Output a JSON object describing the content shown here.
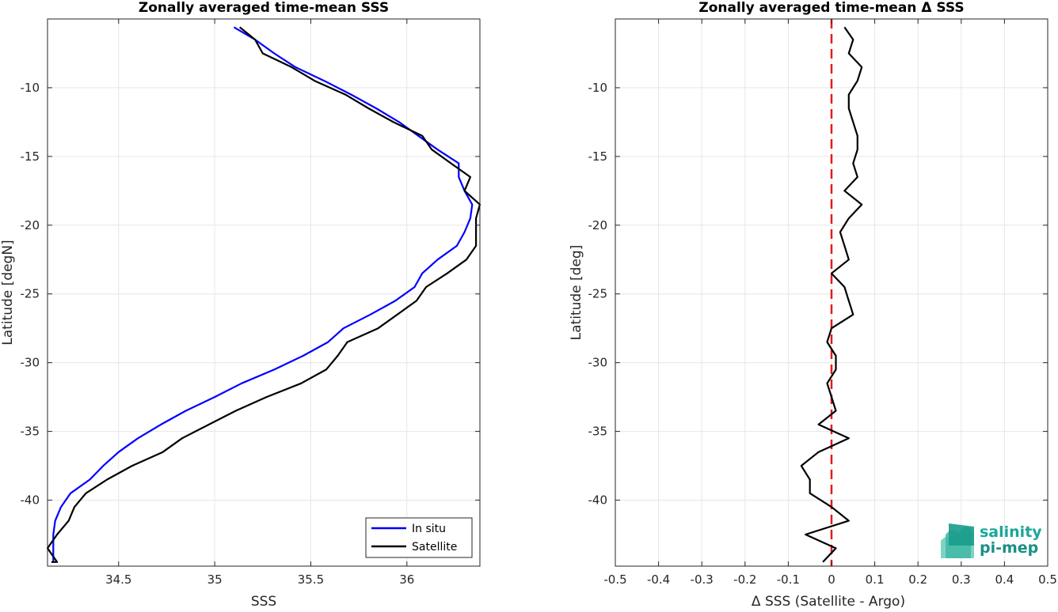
{
  "chart_data": [
    {
      "type": "line",
      "title": "Zonally averaged time-mean SSS",
      "xlabel": "SSS",
      "ylabel": "Latitude [degN]",
      "xlim": [
        34.13,
        36.38
      ],
      "ylim": [
        -44.8,
        -5
      ],
      "xticks": [
        34.5,
        35,
        35.5,
        36
      ],
      "xtick_labels": [
        "34.5",
        "35",
        "35.5",
        "36"
      ],
      "yticks": [
        -40,
        -35,
        -30,
        -25,
        -20,
        -15,
        -10
      ],
      "ytick_labels": [
        "-40",
        "-35",
        "-30",
        "-25",
        "-20",
        "-15",
        "-10"
      ],
      "grid": true,
      "legend_position": "bottom-right",
      "series": [
        {
          "name": "In situ",
          "color": "#0000ff",
          "x": [
            35.1,
            35.21,
            35.31,
            35.42,
            35.57,
            35.71,
            35.84,
            35.96,
            36.06,
            36.16,
            36.27,
            36.27,
            36.3,
            36.34,
            36.33,
            36.3,
            36.26,
            36.16,
            36.08,
            36.04,
            35.94,
            35.81,
            35.67,
            35.59,
            35.46,
            35.31,
            35.14,
            35.0,
            34.85,
            34.72,
            34.6,
            34.5,
            34.42,
            34.35,
            34.25,
            34.2,
            34.17,
            34.16,
            34.16,
            34.16
          ],
          "y": [
            -5.6,
            -6.5,
            -7.5,
            -8.5,
            -9.5,
            -10.5,
            -11.5,
            -12.5,
            -13.5,
            -14.5,
            -15.5,
            -16.5,
            -17.5,
            -18.5,
            -19.5,
            -20.5,
            -21.5,
            -22.5,
            -23.5,
            -24.5,
            -25.5,
            -26.5,
            -27.5,
            -28.5,
            -29.5,
            -30.5,
            -31.5,
            -32.5,
            -33.5,
            -34.5,
            -35.5,
            -36.5,
            -37.5,
            -38.5,
            -39.5,
            -40.5,
            -41.5,
            -42.5,
            -43.5,
            -44.5
          ]
        },
        {
          "name": "Satellite",
          "color": "#000000",
          "x": [
            35.13,
            35.21,
            35.25,
            35.4,
            35.52,
            35.68,
            35.8,
            35.93,
            36.08,
            36.13,
            36.23,
            36.33,
            36.3,
            36.38,
            36.36,
            36.36,
            36.31,
            36.21,
            36.1,
            36.05,
            35.95,
            35.85,
            35.69,
            35.64,
            35.58,
            35.45,
            35.27,
            35.11,
            34.97,
            34.83,
            34.73,
            34.57,
            34.44,
            34.33,
            34.27,
            34.24,
            34.18,
            34.13,
            34.18,
            34.15
          ],
          "y": [
            -5.6,
            -6.5,
            -7.5,
            -8.5,
            -9.5,
            -10.5,
            -11.5,
            -12.5,
            -13.5,
            -14.5,
            -15.5,
            -16.5,
            -17.5,
            -18.5,
            -19.5,
            -21.5,
            -22.5,
            -23.5,
            -24.5,
            -25.5,
            -26.5,
            -27.5,
            -28.5,
            -29.5,
            -30.5,
            -31.5,
            -32.5,
            -33.5,
            -34.5,
            -35.5,
            -36.5,
            -37.5,
            -38.5,
            -39.5,
            -40.5,
            -41.5,
            -42.5,
            -43.5,
            -44.5,
            -44.5
          ]
        }
      ]
    },
    {
      "type": "line",
      "title": "Zonally averaged time-mean Δ SSS",
      "xlabel": "Δ SSS (Satellite - Argo)",
      "ylabel": "Latitude [deg]",
      "xlim": [
        -0.5,
        0.5
      ],
      "ylim": [
        -44.8,
        -5
      ],
      "xticks": [
        -0.5,
        -0.4,
        -0.3,
        -0.2,
        -0.1,
        0,
        0.1,
        0.2,
        0.3,
        0.4,
        0.5
      ],
      "xtick_labels": [
        "-0.5",
        "-0.4",
        "-0.3",
        "-0.2",
        "-0.1",
        "0",
        "0.1",
        "0.2",
        "0.3",
        "0.4",
        "0.5"
      ],
      "yticks": [
        -40,
        -35,
        -30,
        -25,
        -20,
        -15,
        -10
      ],
      "ytick_labels": [
        "-40",
        "-35",
        "-30",
        "-25",
        "-20",
        "-15",
        "-10"
      ],
      "grid": true,
      "reference_line": {
        "x": 0,
        "color": "#e31a1c",
        "style": "dashed"
      },
      "series": [
        {
          "name": "",
          "color": "#000000",
          "x": [
            0.03,
            0.05,
            0.04,
            0.07,
            0.06,
            0.04,
            0.04,
            0.05,
            0.06,
            0.06,
            0.05,
            0.06,
            0.03,
            0.07,
            0.04,
            0.02,
            0.03,
            0.04,
            0.0,
            0.03,
            0.04,
            0.05,
            0.0,
            -0.01,
            0.01,
            0.01,
            -0.01,
            0.0,
            0.01,
            -0.03,
            0.04,
            -0.03,
            -0.07,
            -0.05,
            -0.05,
            0.0,
            0.04,
            -0.06,
            0.01,
            -0.02
          ],
          "y": [
            -5.6,
            -6.5,
            -7.5,
            -8.5,
            -9.5,
            -10.5,
            -11.5,
            -12.5,
            -13.5,
            -14.5,
            -15.5,
            -16.5,
            -17.5,
            -18.5,
            -19.5,
            -20.5,
            -21.5,
            -22.5,
            -23.5,
            -24.5,
            -25.5,
            -26.5,
            -27.5,
            -28.5,
            -29.5,
            -30.5,
            -31.5,
            -32.5,
            -33.5,
            -34.5,
            -35.5,
            -36.5,
            -37.5,
            -38.5,
            -39.5,
            -40.5,
            -41.5,
            -42.5,
            -43.5,
            -44.5
          ]
        }
      ]
    }
  ],
  "legend": {
    "items": [
      "In situ",
      "Satellite"
    ]
  },
  "logo": {
    "line1": "salinity",
    "line2": "pi-mep"
  }
}
